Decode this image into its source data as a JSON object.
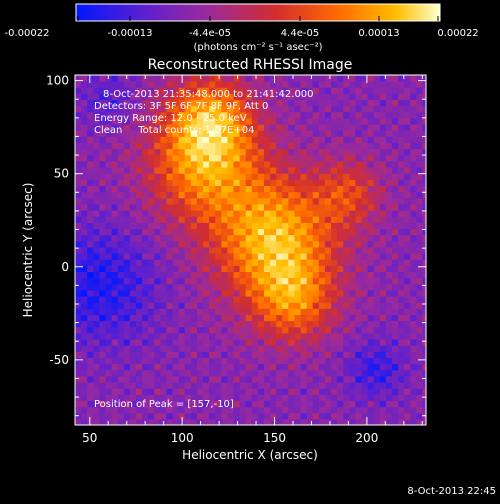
{
  "colorbar": {
    "ticks": [
      "-0.00022",
      "-0.00013",
      "-4.4e-05",
      "4.4e-05",
      "0.00013",
      "0.00022"
    ],
    "unit_label": "(photons cm⁻² s⁻¹ asec⁻²)",
    "colors": [
      "#0018ff",
      "#5a1fd0",
      "#9b2a9c",
      "#d22e2e",
      "#ff6a00",
      "#ffbf00",
      "#ffffd0"
    ]
  },
  "chart_data": {
    "type": "heatmap",
    "title": "Reconstructed RHESSI Image",
    "xlabel": "Heliocentric X (arcsec)",
    "ylabel": "Heliocentric Y (arcsec)",
    "xlim": [
      42,
      232
    ],
    "ylim": [
      -85,
      103
    ],
    "xticks": [
      50,
      100,
      150,
      200
    ],
    "yticks": [
      -50,
      0,
      50,
      100
    ],
    "peak": [
      157,
      -10
    ],
    "annotations": [
      "8-Oct-2013 21:35:48.000 to 21:41:42.000",
      "Detectors: 3F 5F 6F 7F 8F 9F, Att 0",
      "Energy Range: 12.0 - 25.0 keV",
      "Clean     Total counts: 1.07E+04"
    ],
    "peak_label": "Position of Peak = [157,-10]"
  },
  "footer": {
    "timestamp": "8-Oct-2013 22:45"
  }
}
